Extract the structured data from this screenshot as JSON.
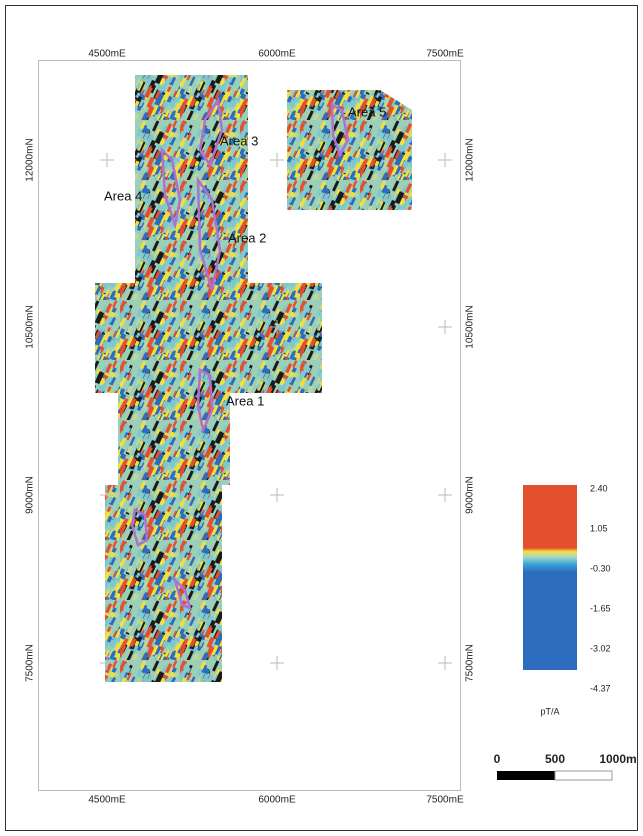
{
  "map": {
    "x_labels_top": [
      "4500mE",
      "6000mE",
      "7500mE"
    ],
    "x_labels_bottom": [
      "4500mE",
      "6000mE",
      "7500mE"
    ],
    "y_labels_left": [
      "12000mN",
      "10500mN",
      "9000mN",
      "7500mN"
    ],
    "y_labels_right": [
      "12000mN",
      "10500mN",
      "9000mN",
      "7500mN"
    ],
    "areas": [
      "Area 1",
      "Area 2",
      "Area 3",
      "Area 4",
      "Area 5"
    ],
    "legend": {
      "ticks": [
        "2.40",
        "1.05",
        "-0.30",
        "-1.65",
        "-3.02",
        "-4.37"
      ],
      "unit": "pT/A"
    },
    "scale_bar": {
      "labels": [
        "0",
        "500",
        "1000m"
      ]
    }
  }
}
